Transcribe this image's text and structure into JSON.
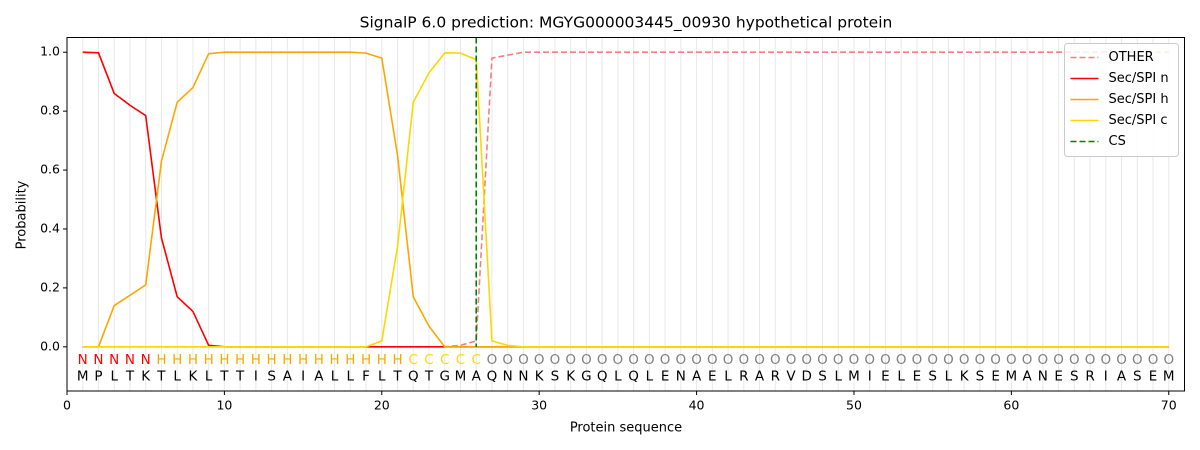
{
  "chart_data": {
    "type": "line",
    "title": "SignalP 6.0 prediction: MGYG000003445_00930 hypothetical protein",
    "x_label": "Protein sequence",
    "y_label": "Probability",
    "xlim": [
      0,
      71
    ],
    "ylim": [
      -0.15,
      1.05
    ],
    "xticks": [
      0,
      10,
      20,
      30,
      40,
      50,
      60,
      70
    ],
    "yticks": [
      {
        "value": 0,
        "label": "0.0"
      },
      {
        "value": 0.2,
        "label": "0.2"
      },
      {
        "value": 0.4,
        "label": "0.4"
      },
      {
        "value": 0.6,
        "label": "0.6"
      },
      {
        "value": 0.8,
        "label": "0.8"
      },
      {
        "value": 1,
        "label": "1.0"
      }
    ],
    "legend": "upper right",
    "x": [
      1,
      2,
      3,
      4,
      5,
      6,
      7,
      8,
      9,
      10,
      11,
      12,
      13,
      14,
      15,
      16,
      17,
      18,
      19,
      20,
      21,
      22,
      23,
      24,
      25,
      26,
      27,
      28,
      29,
      30,
      31,
      32,
      33,
      34,
      35,
      36,
      37,
      38,
      39,
      40,
      41,
      42,
      43,
      44,
      45,
      46,
      47,
      48,
      49,
      50,
      51,
      52,
      53,
      54,
      55,
      56,
      57,
      58,
      59,
      60,
      61,
      62,
      63,
      64,
      65,
      66,
      67,
      68,
      69,
      70
    ],
    "residues": [
      "M",
      "P",
      "L",
      "T",
      "K",
      "T",
      "L",
      "K",
      "L",
      "T",
      "T",
      "I",
      "S",
      "A",
      "I",
      "A",
      "L",
      "L",
      "F",
      "L",
      "T",
      "Q",
      "T",
      "G",
      "M",
      "A",
      "Q",
      "N",
      "N",
      "K",
      "S",
      "K",
      "G",
      "Q",
      "L",
      "Q",
      "L",
      "E",
      "N",
      "A",
      "E",
      "L",
      "R",
      "A",
      "R",
      "V",
      "D",
      "S",
      "L",
      "M",
      "I",
      "E",
      "L",
      "E",
      "S",
      "L",
      "K",
      "S",
      "E",
      "M",
      "A",
      "N",
      "E",
      "S",
      "R",
      "I",
      "A",
      "S",
      "E",
      "M"
    ],
    "region_labels": [
      "N",
      "N",
      "N",
      "N",
      "N",
      "H",
      "H",
      "H",
      "H",
      "H",
      "H",
      "H",
      "H",
      "H",
      "H",
      "H",
      "H",
      "H",
      "H",
      "H",
      "H",
      "C",
      "C",
      "C",
      "C",
      "C",
      "O",
      "O",
      "O",
      "O",
      "O",
      "O",
      "O",
      "O",
      "O",
      "O",
      "O",
      "O",
      "O",
      "O",
      "O",
      "O",
      "O",
      "O",
      "O",
      "O",
      "O",
      "O",
      "O",
      "O",
      "O",
      "O",
      "O",
      "O",
      "O",
      "O",
      "O",
      "O",
      "O",
      "O",
      "O",
      "O",
      "O",
      "O",
      "O",
      "O",
      "O",
      "O",
      "O",
      "O"
    ],
    "region_colors": {
      "N": "#ff0000",
      "H": "#ffa500",
      "C": "#ffd700",
      "O": "#808080"
    },
    "series": [
      {
        "name": "OTHER",
        "color": "#f08080",
        "linestyle": "dashed",
        "values": [
          0,
          0,
          0,
          0,
          0,
          0,
          0,
          0,
          0,
          0,
          0,
          0,
          0,
          0,
          0,
          0,
          0,
          0,
          0,
          0,
          0,
          0,
          0,
          0,
          0.005,
          0.02,
          0.98,
          0.99,
          1,
          1,
          1,
          1,
          1,
          1,
          1,
          1,
          1,
          1,
          1,
          1,
          1,
          1,
          1,
          1,
          1,
          1,
          1,
          1,
          1,
          1,
          1,
          1,
          1,
          1,
          1,
          1,
          1,
          1,
          1,
          1,
          1,
          1,
          1,
          1,
          1,
          1,
          1,
          1,
          1,
          1
        ]
      },
      {
        "name": "Sec/SPI n",
        "color": "#ff0000",
        "linestyle": "solid",
        "values": [
          1,
          0.998,
          0.86,
          0.82,
          0.785,
          0.37,
          0.17,
          0.12,
          0.005,
          0,
          0,
          0,
          0,
          0,
          0,
          0,
          0,
          0,
          0,
          0,
          0,
          0,
          0,
          0,
          0,
          0,
          0,
          0,
          0,
          0,
          0,
          0,
          0,
          0,
          0,
          0,
          0,
          0,
          0,
          0,
          0,
          0,
          0,
          0,
          0,
          0,
          0,
          0,
          0,
          0,
          0,
          0,
          0,
          0,
          0,
          0,
          0,
          0,
          0,
          0,
          0,
          0,
          0,
          0,
          0,
          0,
          0,
          0,
          0,
          0
        ]
      },
      {
        "name": "Sec/SPI h",
        "color": "#ffa500",
        "linestyle": "solid",
        "values": [
          0,
          0,
          0.14,
          0.175,
          0.21,
          0.63,
          0.83,
          0.88,
          0.995,
          1,
          1,
          1,
          1,
          1,
          1,
          1,
          1,
          1,
          0.997,
          0.98,
          0.65,
          0.17,
          0.07,
          0,
          0,
          0,
          0,
          0,
          0,
          0,
          0,
          0,
          0,
          0,
          0,
          0,
          0,
          0,
          0,
          0,
          0,
          0,
          0,
          0,
          0,
          0,
          0,
          0,
          0,
          0,
          0,
          0,
          0,
          0,
          0,
          0,
          0,
          0,
          0,
          0,
          0,
          0,
          0,
          0,
          0,
          0,
          0,
          0,
          0,
          0
        ]
      },
      {
        "name": "Sec/SPI c",
        "color": "#ffd700",
        "linestyle": "solid",
        "values": [
          0,
          0,
          0,
          0,
          0,
          0,
          0,
          0,
          0,
          0,
          0,
          0,
          0,
          0,
          0,
          0,
          0,
          0,
          0,
          0.02,
          0.34,
          0.83,
          0.93,
          0.998,
          0.997,
          0.975,
          0.02,
          0.005,
          0,
          0,
          0,
          0,
          0,
          0,
          0,
          0,
          0,
          0,
          0,
          0,
          0,
          0,
          0,
          0,
          0,
          0,
          0,
          0,
          0,
          0,
          0,
          0,
          0,
          0,
          0,
          0,
          0,
          0,
          0,
          0,
          0,
          0,
          0,
          0,
          0,
          0,
          0,
          0,
          0,
          0
        ]
      }
    ],
    "cs": {
      "name": "CS",
      "x": 26,
      "color": "#008000",
      "linestyle": "dashed"
    }
  }
}
